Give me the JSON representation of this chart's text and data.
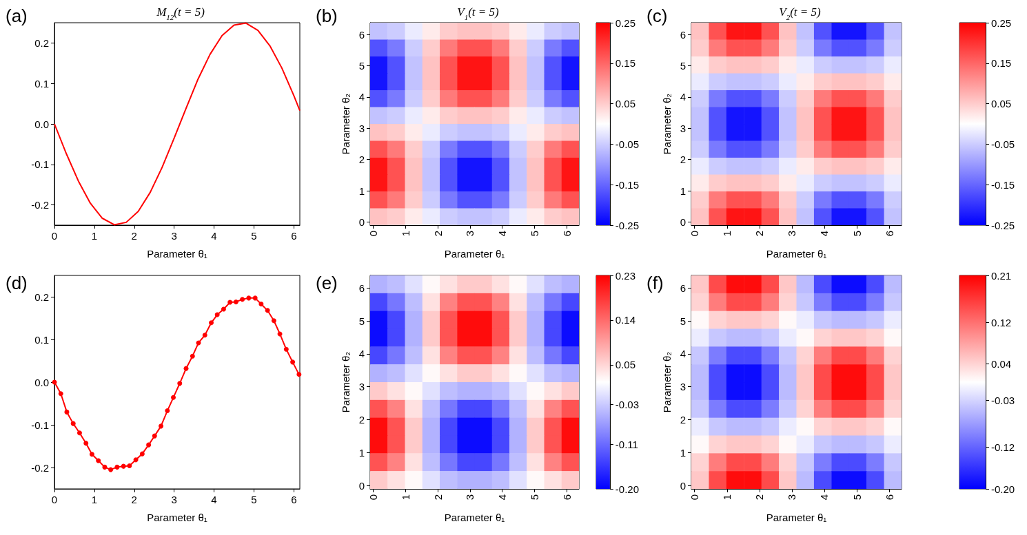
{
  "chart_data": [
    {
      "type": "line",
      "title": "M$_{12}$(t = 5)",
      "xlabel": "Parameter θ₁",
      "annotations": [
        "(a)"
      ],
      "xlim": [
        0,
        6.15
      ],
      "ylim": [
        -0.25,
        0.25
      ],
      "xticks": [
        0,
        1,
        2,
        3,
        4,
        5,
        6
      ],
      "yticks": [
        -0.2,
        -0.1,
        {
          "value": 0,
          "label": "0.0"
        },
        0.1,
        0.2
      ],
      "marker": "none",
      "x": [
        0,
        0.3,
        0.6,
        0.9,
        1.2,
        1.5,
        1.8,
        2.1,
        2.4,
        2.7,
        3.0,
        3.3,
        3.6,
        3.9,
        4.2,
        4.5,
        4.8,
        5.1,
        5.4,
        5.7,
        6.0,
        6.15
      ],
      "series": [
        {
          "color": "#ff0000",
          "values": [
            0,
            -0.074,
            -0.141,
            -0.196,
            -0.233,
            -0.249,
            -0.243,
            -0.216,
            -0.169,
            -0.107,
            -0.035,
            0.039,
            0.111,
            0.172,
            0.218,
            0.244,
            0.249,
            0.231,
            0.193,
            0.138,
            0.07,
            0.033
          ]
        }
      ]
    },
    {
      "type": "heatmap",
      "title": "V$_{1}$(t = 5)",
      "xlabel": "Parameter θ₁",
      "ylabel": "Parameter θ₂",
      "annotations": [
        "(b)"
      ],
      "xlim": [
        -0.1,
        6.38
      ],
      "ylim": [
        -0.1,
        6.38
      ],
      "xticks": [
        0,
        1,
        2,
        3,
        4,
        5,
        6
      ],
      "yticks": [
        0,
        1,
        2,
        3,
        4,
        5,
        6
      ],
      "clim": [
        -0.25,
        0.25
      ],
      "cticks": [
        -0.25,
        -0.15,
        -0.05,
        0.05,
        0.15,
        0.25
      ],
      "x": [
        0.17,
        0.71,
        1.25,
        1.79,
        2.33,
        2.87,
        3.41,
        3.95,
        4.49,
        5.03,
        5.57,
        6.11
      ],
      "y": [
        6.11,
        5.57,
        5.03,
        4.49,
        3.95,
        3.41,
        2.87,
        2.33,
        1.79,
        1.25,
        0.71,
        0.17
      ],
      "cells": [
        [
          -0.06,
          -0.05,
          -0.02,
          0.02,
          0.05,
          0.06,
          0.06,
          0.05,
          0.02,
          -0.02,
          -0.05,
          -0.06
        ],
        [
          -0.17,
          -0.13,
          -0.05,
          0.05,
          0.13,
          0.17,
          0.17,
          0.13,
          0.05,
          -0.05,
          -0.13,
          -0.17
        ],
        [
          -0.23,
          -0.17,
          -0.06,
          0.06,
          0.17,
          0.23,
          0.23,
          0.17,
          0.06,
          -0.06,
          -0.17,
          -0.23
        ],
        [
          -0.23,
          -0.17,
          -0.06,
          0.06,
          0.17,
          0.23,
          0.23,
          0.17,
          0.06,
          -0.06,
          -0.17,
          -0.23
        ],
        [
          -0.17,
          -0.13,
          -0.05,
          0.05,
          0.13,
          0.17,
          0.17,
          0.13,
          0.05,
          -0.05,
          -0.13,
          -0.17
        ],
        [
          -0.06,
          -0.05,
          -0.02,
          0.02,
          0.05,
          0.06,
          0.06,
          0.05,
          0.02,
          -0.02,
          -0.05,
          -0.06
        ],
        [
          0.06,
          0.05,
          0.02,
          -0.02,
          -0.05,
          -0.06,
          -0.06,
          -0.05,
          -0.02,
          0.02,
          0.05,
          0.06
        ],
        [
          0.17,
          0.13,
          0.05,
          -0.05,
          -0.13,
          -0.17,
          -0.17,
          -0.13,
          -0.05,
          0.05,
          0.13,
          0.17
        ],
        [
          0.23,
          0.17,
          0.06,
          -0.06,
          -0.17,
          -0.23,
          -0.23,
          -0.17,
          -0.06,
          0.06,
          0.17,
          0.23
        ],
        [
          0.23,
          0.17,
          0.06,
          -0.06,
          -0.17,
          -0.23,
          -0.23,
          -0.17,
          -0.06,
          0.06,
          0.17,
          0.23
        ],
        [
          0.17,
          0.13,
          0.05,
          -0.05,
          -0.13,
          -0.17,
          -0.17,
          -0.13,
          -0.05,
          0.05,
          0.13,
          0.17
        ],
        [
          0.06,
          0.05,
          0.02,
          -0.02,
          -0.05,
          -0.06,
          -0.06,
          -0.05,
          -0.02,
          0.02,
          0.05,
          0.06
        ]
      ]
    },
    {
      "type": "heatmap",
      "title": "V$_{2}$(t = 5)",
      "xlabel": "Parameter θ₁",
      "ylabel": "Parameter θ₂",
      "annotations": [
        "(c)"
      ],
      "xlim": [
        -0.1,
        6.38
      ],
      "ylim": [
        -0.1,
        6.38
      ],
      "xticks": [
        0,
        1,
        2,
        3,
        4,
        5,
        6
      ],
      "yticks": [
        0,
        1,
        2,
        3,
        4,
        5,
        6
      ],
      "clim": [
        -0.25,
        0.25
      ],
      "cticks": [
        -0.25,
        -0.15,
        -0.05,
        0.05,
        0.15,
        0.25
      ],
      "x": [
        0.17,
        0.71,
        1.25,
        1.79,
        2.33,
        2.87,
        3.41,
        3.95,
        4.49,
        5.03,
        5.57,
        6.11
      ],
      "y": [
        6.11,
        5.57,
        5.03,
        4.49,
        3.95,
        3.41,
        2.87,
        2.33,
        1.79,
        1.25,
        0.71,
        0.17
      ],
      "cells": [
        [
          0.06,
          0.17,
          0.23,
          0.23,
          0.17,
          0.06,
          -0.06,
          -0.17,
          -0.23,
          -0.23,
          -0.17,
          -0.06
        ],
        [
          0.05,
          0.13,
          0.17,
          0.17,
          0.13,
          0.05,
          -0.05,
          -0.13,
          -0.17,
          -0.17,
          -0.13,
          -0.05
        ],
        [
          0.02,
          0.05,
          0.06,
          0.06,
          0.05,
          0.02,
          -0.02,
          -0.05,
          -0.06,
          -0.06,
          -0.05,
          -0.02
        ],
        [
          -0.02,
          -0.05,
          -0.06,
          -0.06,
          -0.05,
          -0.02,
          0.02,
          0.05,
          0.06,
          0.06,
          0.05,
          0.02
        ],
        [
          -0.05,
          -0.13,
          -0.17,
          -0.17,
          -0.13,
          -0.05,
          0.05,
          0.13,
          0.17,
          0.17,
          0.13,
          0.05
        ],
        [
          -0.06,
          -0.17,
          -0.23,
          -0.23,
          -0.17,
          -0.06,
          0.06,
          0.17,
          0.23,
          0.23,
          0.17,
          0.06
        ],
        [
          -0.06,
          -0.17,
          -0.23,
          -0.23,
          -0.17,
          -0.06,
          0.06,
          0.17,
          0.23,
          0.23,
          0.17,
          0.06
        ],
        [
          -0.05,
          -0.13,
          -0.17,
          -0.17,
          -0.13,
          -0.05,
          0.05,
          0.13,
          0.17,
          0.17,
          0.13,
          0.05
        ],
        [
          -0.02,
          -0.05,
          -0.06,
          -0.06,
          -0.05,
          -0.02,
          0.02,
          0.05,
          0.06,
          0.06,
          0.05,
          0.02
        ],
        [
          0.02,
          0.05,
          0.06,
          0.06,
          0.05,
          0.02,
          -0.02,
          -0.05,
          -0.06,
          -0.06,
          -0.05,
          -0.02
        ],
        [
          0.05,
          0.13,
          0.17,
          0.17,
          0.13,
          0.05,
          -0.05,
          -0.13,
          -0.17,
          -0.17,
          -0.13,
          -0.05
        ],
        [
          0.06,
          0.17,
          0.23,
          0.23,
          0.17,
          0.06,
          -0.06,
          -0.17,
          -0.23,
          -0.23,
          -0.17,
          -0.06
        ]
      ]
    },
    {
      "type": "line",
      "xlabel": "Parameter θ₁",
      "annotations": [
        "(d)"
      ],
      "xlim": [
        0,
        6.15
      ],
      "ylim": [
        -0.25,
        0.25
      ],
      "xticks": [
        0,
        1,
        2,
        3,
        4,
        5,
        6
      ],
      "yticks": [
        -0.2,
        -0.1,
        {
          "value": 0,
          "label": "0.0"
        },
        0.1,
        0.2
      ],
      "marker": "circle",
      "x": [
        0,
        0.16,
        0.31,
        0.47,
        0.63,
        0.79,
        0.94,
        1.1,
        1.26,
        1.41,
        1.57,
        1.73,
        1.88,
        2.04,
        2.2,
        2.36,
        2.51,
        2.67,
        2.83,
        2.98,
        3.14,
        3.3,
        3.46,
        3.61,
        3.77,
        3.93,
        4.08,
        4.24,
        4.4,
        4.55,
        4.71,
        4.87,
        5.03,
        5.18,
        5.34,
        5.5,
        5.65,
        5.81,
        5.97,
        6.13
      ],
      "series": [
        {
          "color": "#ff0000",
          "values": [
            0,
            -0.027,
            -0.07,
            -0.097,
            -0.119,
            -0.143,
            -0.169,
            -0.184,
            -0.199,
            -0.205,
            -0.199,
            -0.197,
            -0.196,
            -0.182,
            -0.168,
            -0.147,
            -0.126,
            -0.103,
            -0.067,
            -0.036,
            -0.003,
            0.032,
            0.061,
            0.092,
            0.11,
            0.139,
            0.158,
            0.171,
            0.187,
            0.188,
            0.194,
            0.197,
            0.197,
            0.183,
            0.168,
            0.144,
            0.113,
            0.077,
            0.047,
            0.018
          ]
        }
      ]
    },
    {
      "type": "heatmap",
      "xlabel": "Parameter θ₁",
      "ylabel": "Parameter θ₂",
      "annotations": [
        "(e)"
      ],
      "xlim": [
        -0.1,
        6.38
      ],
      "ylim": [
        -0.1,
        6.38
      ],
      "xticks": [
        0,
        1,
        2,
        3,
        4,
        5,
        6
      ],
      "yticks": [
        0,
        1,
        2,
        3,
        4,
        5,
        6
      ],
      "clim": [
        -0.2,
        0.23
      ],
      "cticks": [
        {
          "value": -0.2,
          "label": "-0.20"
        },
        -0.11,
        -0.03,
        0.05,
        0.14,
        0.23
      ],
      "x": [
        0.17,
        0.71,
        1.25,
        1.79,
        2.33,
        2.87,
        3.41,
        3.95,
        4.49,
        5.03,
        5.57,
        6.11
      ],
      "y": [
        6.11,
        5.57,
        5.03,
        4.49,
        3.95,
        3.41,
        2.87,
        2.33,
        1.79,
        1.25,
        0.71,
        0.17
      ],
      "cells": [
        [
          -0.05,
          -0.04,
          -0.01,
          0.02,
          0.04,
          0.06,
          0.06,
          0.04,
          0.02,
          -0.01,
          -0.04,
          -0.05
        ],
        [
          -0.14,
          -0.1,
          -0.04,
          0.04,
          0.12,
          0.16,
          0.16,
          0.12,
          0.04,
          -0.04,
          -0.1,
          -0.14
        ],
        [
          -0.19,
          -0.14,
          -0.05,
          0.06,
          0.16,
          0.22,
          0.22,
          0.16,
          0.06,
          -0.05,
          -0.14,
          -0.19
        ],
        [
          -0.19,
          -0.14,
          -0.05,
          0.06,
          0.16,
          0.22,
          0.22,
          0.16,
          0.06,
          -0.05,
          -0.14,
          -0.19
        ],
        [
          -0.14,
          -0.1,
          -0.04,
          0.04,
          0.12,
          0.16,
          0.16,
          0.12,
          0.04,
          -0.04,
          -0.1,
          -0.14
        ],
        [
          -0.05,
          -0.04,
          -0.01,
          0.02,
          0.04,
          0.06,
          0.06,
          0.04,
          0.02,
          -0.01,
          -0.04,
          -0.05
        ],
        [
          0.06,
          0.04,
          0.02,
          -0.01,
          -0.04,
          -0.05,
          -0.05,
          -0.04,
          -0.01,
          0.02,
          0.04,
          0.06
        ],
        [
          0.16,
          0.12,
          0.04,
          -0.04,
          -0.1,
          -0.14,
          -0.14,
          -0.1,
          -0.04,
          0.04,
          0.12,
          0.16
        ],
        [
          0.22,
          0.16,
          0.06,
          -0.05,
          -0.14,
          -0.19,
          -0.19,
          -0.14,
          -0.05,
          0.06,
          0.16,
          0.22
        ],
        [
          0.22,
          0.16,
          0.06,
          -0.05,
          -0.14,
          -0.19,
          -0.19,
          -0.14,
          -0.05,
          0.06,
          0.16,
          0.22
        ],
        [
          0.16,
          0.12,
          0.04,
          -0.04,
          -0.1,
          -0.14,
          -0.14,
          -0.1,
          -0.04,
          0.04,
          0.12,
          0.16
        ],
        [
          0.06,
          0.04,
          0.02,
          -0.01,
          -0.04,
          -0.05,
          -0.05,
          -0.04,
          -0.01,
          0.02,
          0.04,
          0.06
        ]
      ]
    },
    {
      "type": "heatmap",
      "xlabel": "Parameter θ₁",
      "ylabel": "Parameter θ₂",
      "annotations": [
        "(f)"
      ],
      "xlim": [
        -0.1,
        6.38
      ],
      "ylim": [
        -0.1,
        6.38
      ],
      "xticks": [
        0,
        1,
        2,
        3,
        4,
        5,
        6
      ],
      "yticks": [
        0,
        1,
        2,
        3,
        4,
        5,
        6
      ],
      "clim": [
        -0.2,
        0.21
      ],
      "cticks": [
        {
          "value": -0.2,
          "label": "-0.20"
        },
        -0.12,
        -0.03,
        0.04,
        0.12,
        0.21
      ],
      "x": [
        0.17,
        0.71,
        1.25,
        1.79,
        2.33,
        2.87,
        3.41,
        3.95,
        4.49,
        5.03,
        5.57,
        6.11
      ],
      "y": [
        6.11,
        5.57,
        5.03,
        4.49,
        3.95,
        3.41,
        2.87,
        2.33,
        1.79,
        1.25,
        0.71,
        0.17
      ],
      "cells": [
        [
          0.05,
          0.15,
          0.2,
          0.2,
          0.15,
          0.05,
          -0.05,
          -0.14,
          -0.19,
          -0.19,
          -0.14,
          -0.05
        ],
        [
          0.04,
          0.11,
          0.15,
          0.15,
          0.11,
          0.04,
          -0.04,
          -0.1,
          -0.14,
          -0.14,
          -0.1,
          -0.04
        ],
        [
          0.01,
          0.04,
          0.05,
          0.05,
          0.04,
          0.01,
          -0.01,
          -0.04,
          -0.05,
          -0.05,
          -0.04,
          -0.01
        ],
        [
          -0.01,
          -0.04,
          -0.05,
          -0.05,
          -0.04,
          -0.01,
          0.01,
          0.04,
          0.05,
          0.05,
          0.04,
          0.01
        ],
        [
          -0.04,
          -0.1,
          -0.14,
          -0.14,
          -0.1,
          -0.04,
          0.04,
          0.11,
          0.15,
          0.15,
          0.11,
          0.04
        ],
        [
          -0.05,
          -0.14,
          -0.19,
          -0.19,
          -0.14,
          -0.05,
          0.05,
          0.15,
          0.2,
          0.2,
          0.15,
          0.05
        ],
        [
          -0.05,
          -0.14,
          -0.19,
          -0.19,
          -0.14,
          -0.05,
          0.05,
          0.15,
          0.2,
          0.2,
          0.15,
          0.05
        ],
        [
          -0.04,
          -0.1,
          -0.14,
          -0.14,
          -0.1,
          -0.04,
          0.04,
          0.11,
          0.15,
          0.15,
          0.11,
          0.04
        ],
        [
          -0.01,
          -0.04,
          -0.05,
          -0.05,
          -0.04,
          -0.01,
          0.01,
          0.04,
          0.05,
          0.05,
          0.04,
          0.01
        ],
        [
          0.01,
          0.04,
          0.05,
          0.05,
          0.04,
          0.01,
          -0.01,
          -0.04,
          -0.05,
          -0.05,
          -0.04,
          -0.01
        ],
        [
          0.04,
          0.11,
          0.15,
          0.15,
          0.11,
          0.04,
          -0.04,
          -0.1,
          -0.14,
          -0.14,
          -0.1,
          -0.04
        ],
        [
          0.05,
          0.15,
          0.2,
          0.2,
          0.15,
          0.05,
          -0.05,
          -0.14,
          -0.19,
          -0.19,
          -0.14,
          -0.05
        ]
      ]
    }
  ]
}
